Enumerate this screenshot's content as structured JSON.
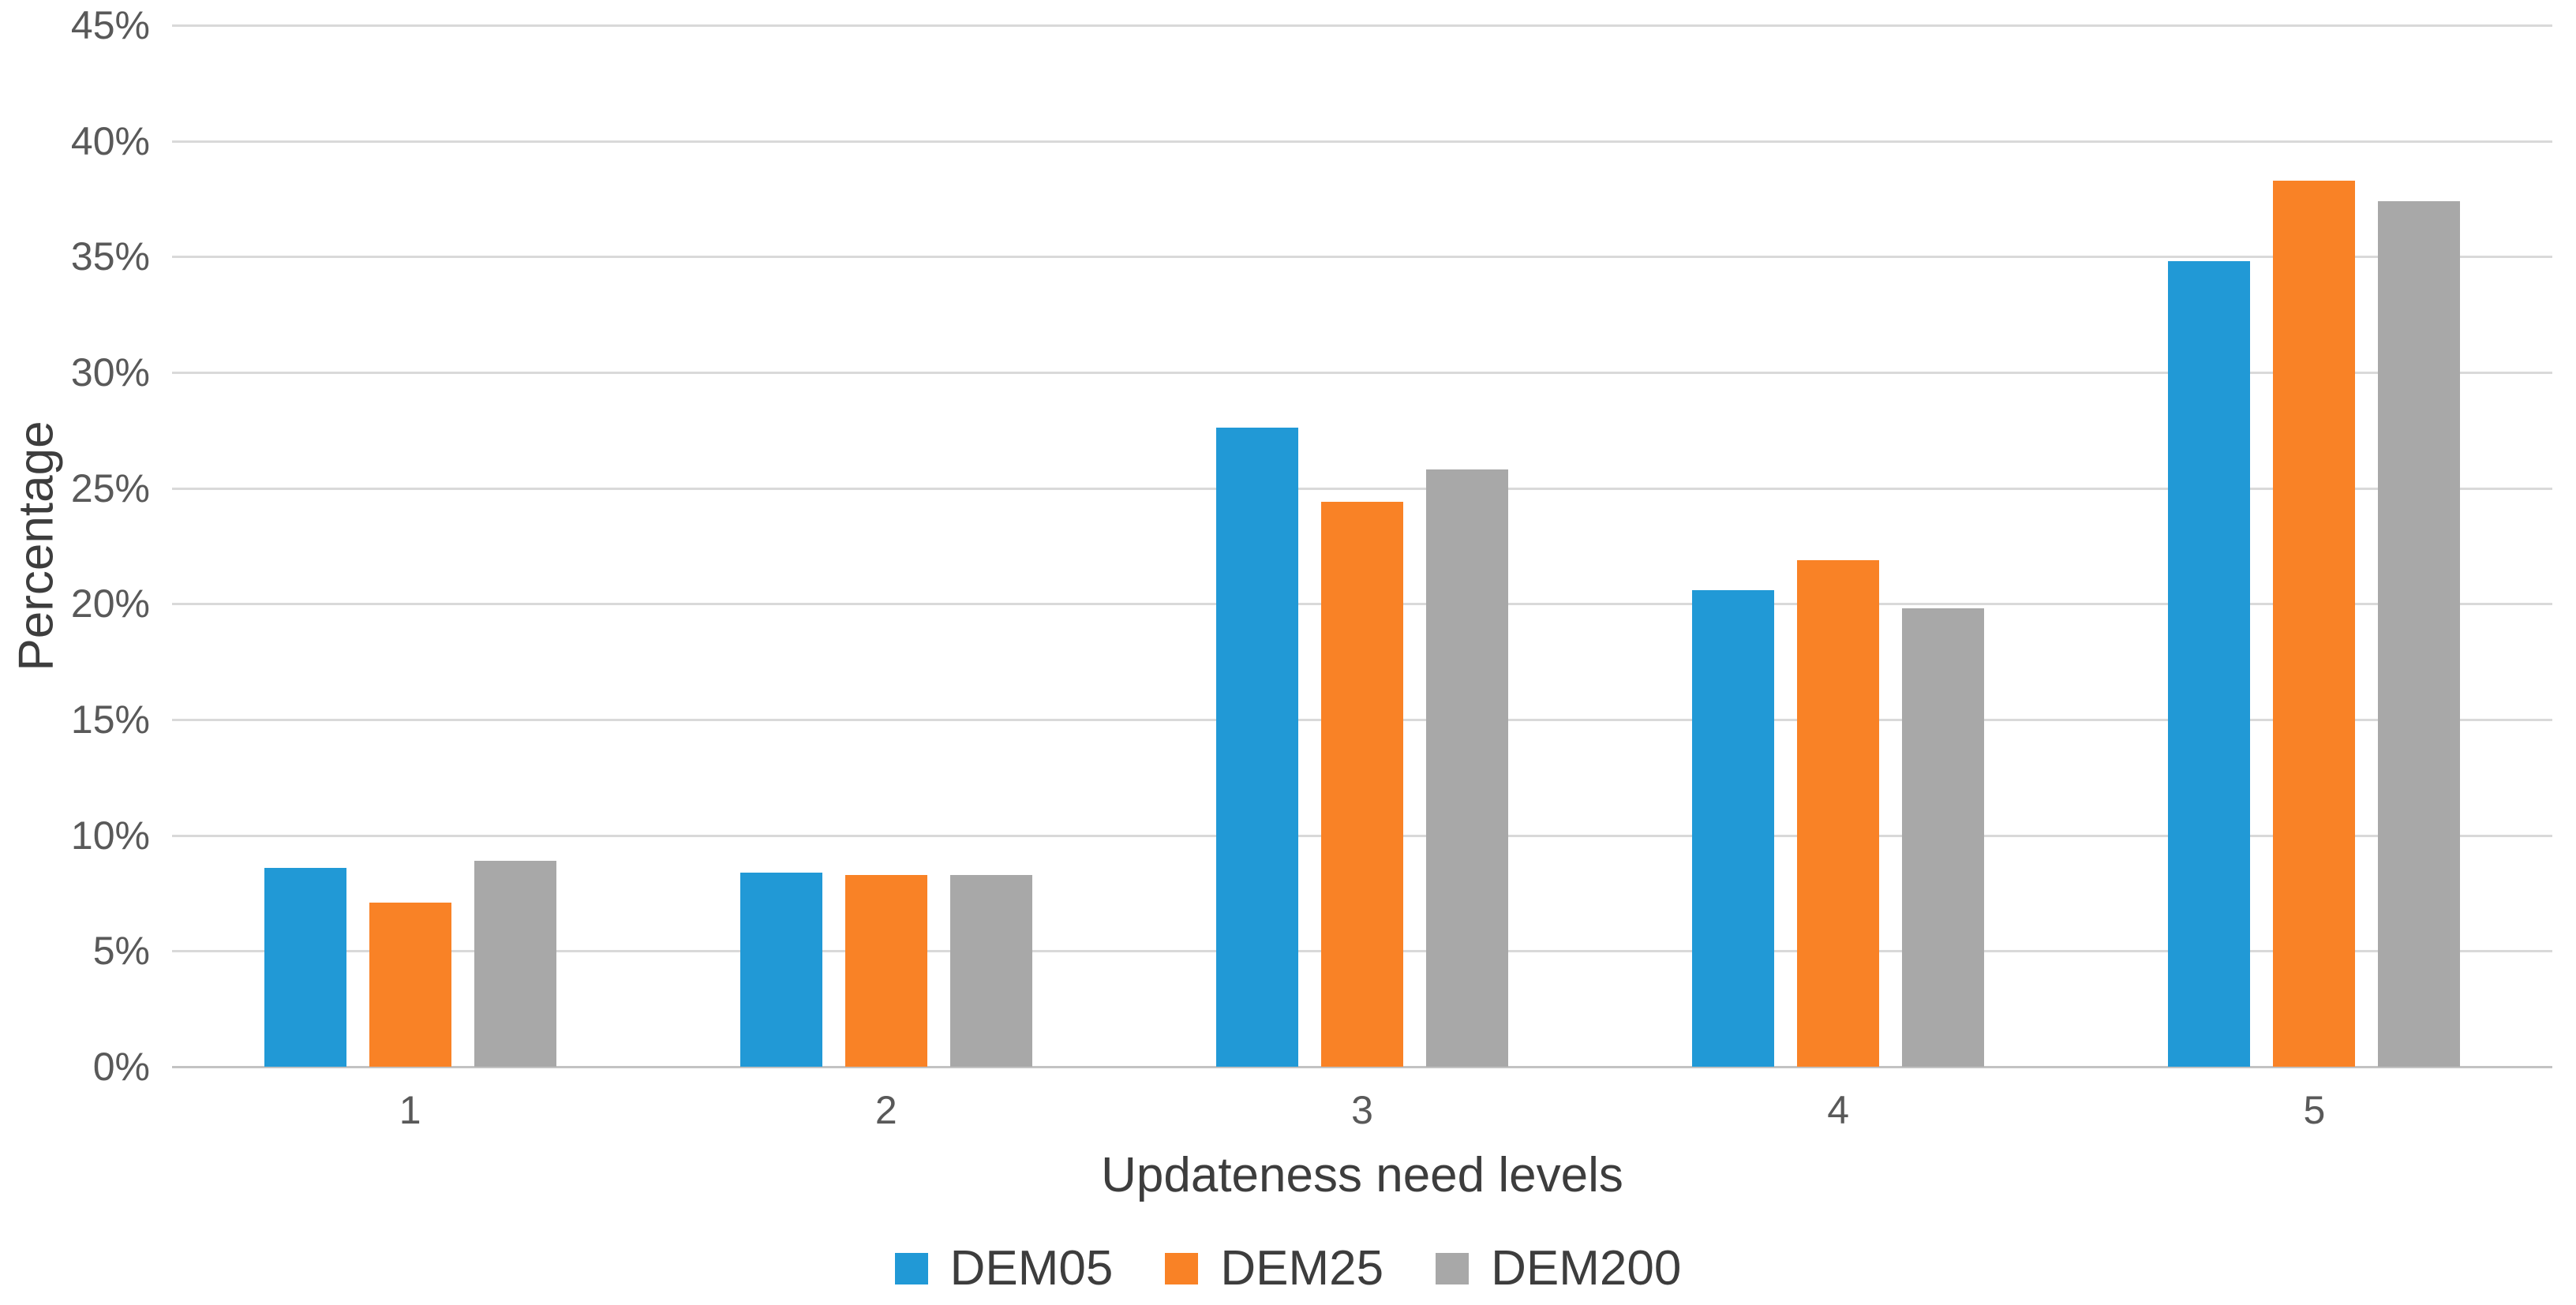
{
  "chart_data": {
    "type": "bar",
    "title": "",
    "xlabel": "Updateness need levels",
    "ylabel": "Percentage",
    "categories": [
      "1",
      "2",
      "3",
      "4",
      "5"
    ],
    "series": [
      {
        "name": "DEM05",
        "color": "#2199d6",
        "values": [
          8.6,
          8.4,
          27.6,
          20.6,
          34.8
        ]
      },
      {
        "name": "DEM25",
        "color": "#f98226",
        "values": [
          7.1,
          8.3,
          24.4,
          21.9,
          38.3
        ]
      },
      {
        "name": "DEM200",
        "color": "#a8a8a8",
        "values": [
          8.9,
          8.3,
          25.8,
          19.8,
          37.4
        ]
      }
    ],
    "ylim": [
      0,
      45
    ],
    "ytick_values": [
      0,
      5,
      10,
      15,
      20,
      25,
      30,
      35,
      40,
      45
    ],
    "yticks": [
      "0%",
      "5%",
      "10%",
      "15%",
      "20%",
      "25%",
      "30%",
      "35%",
      "40%",
      "45%"
    ],
    "grid": true,
    "legend_position": "bottom",
    "colors": {
      "gridline": "#d9d9d9",
      "axis_line": "#c3c3c3",
      "tick_text": "#595959",
      "title_text": "#3d3d3d"
    }
  }
}
